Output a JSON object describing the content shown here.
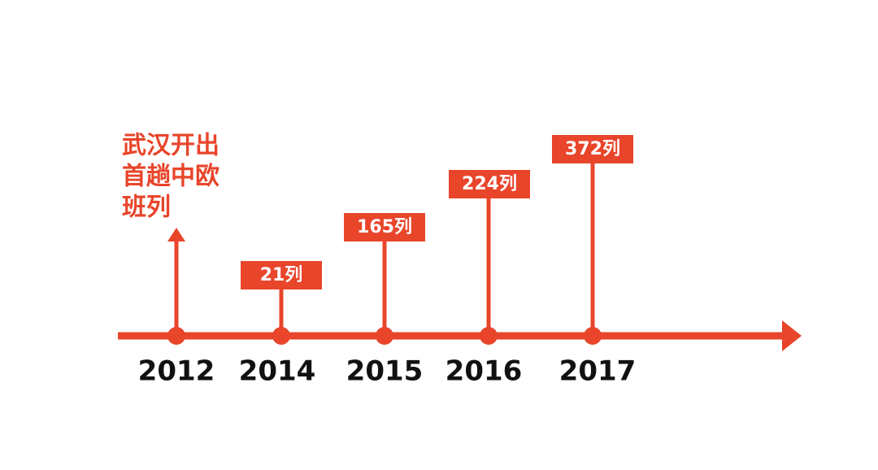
{
  "events": [
    {
      "year": "2012",
      "label_lines": [
        "武汉开出",
        "首趟中欧",
        "班列"
      ]
    },
    {
      "year": "2014",
      "label": "21列"
    },
    {
      "year": "2015",
      "label": "165列"
    },
    {
      "year": "2016",
      "label": "224列"
    },
    {
      "year": "2017",
      "label": "372列"
    }
  ]
}
